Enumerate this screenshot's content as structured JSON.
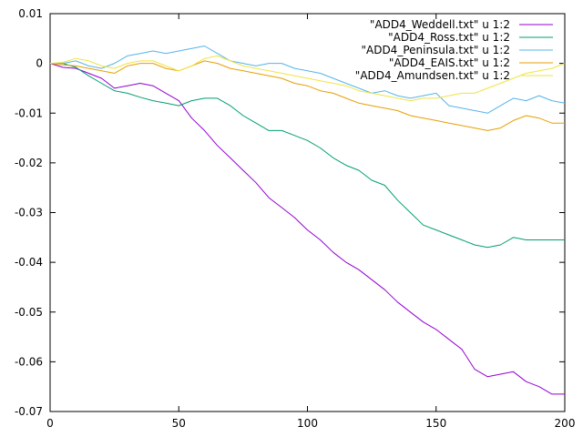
{
  "chart_data": {
    "type": "line",
    "title": "",
    "xlabel": "",
    "ylabel": "",
    "xlim": [
      0,
      200
    ],
    "ylim": [
      -0.07,
      0.01
    ],
    "xticks": [
      0,
      50,
      100,
      150,
      200
    ],
    "xtick_labels": [
      "0",
      "50",
      "100",
      "150",
      "200"
    ],
    "yticks": [
      0.01,
      0,
      -0.01,
      -0.02,
      -0.03,
      -0.04,
      -0.05,
      -0.06,
      -0.07
    ],
    "ytick_labels": [
      "0.01",
      "0",
      "-0.01",
      "-0.02",
      "-0.03",
      "-0.04",
      "-0.05",
      "-0.06",
      "-0.07"
    ],
    "grid": false,
    "legend_position": "top-right",
    "series": [
      {
        "name": "\"ADD4_Weddell.txt\" u 1:2",
        "color": "#9400d3",
        "x": [
          0,
          5,
          10,
          15,
          20,
          25,
          30,
          35,
          40,
          45,
          50,
          55,
          60,
          65,
          70,
          75,
          80,
          85,
          90,
          95,
          100,
          105,
          110,
          115,
          120,
          125,
          130,
          135,
          140,
          145,
          150,
          155,
          160,
          165,
          170,
          175,
          180,
          185,
          190,
          195,
          200
        ],
        "y": [
          0,
          -0.0008,
          -0.001,
          -0.002,
          -0.003,
          -0.005,
          -0.0045,
          -0.004,
          -0.0045,
          -0.006,
          -0.0075,
          -0.011,
          -0.0135,
          -0.0165,
          -0.019,
          -0.0215,
          -0.024,
          -0.027,
          -0.029,
          -0.031,
          -0.0335,
          -0.0355,
          -0.038,
          -0.04,
          -0.0415,
          -0.0435,
          -0.0455,
          -0.048,
          -0.05,
          -0.052,
          -0.0535,
          -0.0555,
          -0.0575,
          -0.0615,
          -0.063,
          -0.0625,
          -0.062,
          -0.064,
          -0.065,
          -0.0665,
          -0.0665
        ]
      },
      {
        "name": "\"ADD4_Ross.txt\" u 1:2",
        "color": "#009e73",
        "x": [
          0,
          5,
          10,
          15,
          20,
          25,
          30,
          35,
          40,
          45,
          50,
          55,
          60,
          65,
          70,
          75,
          80,
          85,
          90,
          95,
          100,
          105,
          110,
          115,
          120,
          125,
          130,
          135,
          140,
          145,
          150,
          155,
          160,
          165,
          170,
          175,
          180,
          185,
          190,
          195,
          200
        ],
        "y": [
          0,
          0,
          -0.0008,
          -0.0025,
          -0.004,
          -0.0055,
          -0.006,
          -0.0068,
          -0.0075,
          -0.008,
          -0.0085,
          -0.0075,
          -0.007,
          -0.007,
          -0.0085,
          -0.0105,
          -0.012,
          -0.0135,
          -0.0135,
          -0.0145,
          -0.0155,
          -0.017,
          -0.019,
          -0.0205,
          -0.0215,
          -0.0235,
          -0.0245,
          -0.0275,
          -0.03,
          -0.0325,
          -0.0335,
          -0.0345,
          -0.0355,
          -0.0365,
          -0.037,
          -0.0365,
          -0.035,
          -0.0355,
          -0.0355,
          -0.0355,
          -0.0355
        ]
      },
      {
        "name": "\"ADD4_Peninsula.txt\" u 1:2",
        "color": "#56b4e9",
        "x": [
          0,
          5,
          10,
          15,
          20,
          25,
          30,
          35,
          40,
          45,
          50,
          55,
          60,
          65,
          70,
          75,
          80,
          85,
          90,
          95,
          100,
          105,
          110,
          115,
          120,
          125,
          130,
          135,
          140,
          145,
          150,
          155,
          160,
          165,
          170,
          175,
          180,
          185,
          190,
          195,
          200
        ],
        "y": [
          0,
          0,
          0.0005,
          -0.0005,
          -0.001,
          0,
          0.0015,
          0.002,
          0.0025,
          0.002,
          0.0025,
          0.003,
          0.0035,
          0.002,
          0.0005,
          0,
          -0.0005,
          0,
          0,
          -0.001,
          -0.0015,
          -0.002,
          -0.003,
          -0.004,
          -0.005,
          -0.006,
          -0.0055,
          -0.0065,
          -0.007,
          -0.0065,
          -0.006,
          -0.0085,
          -0.009,
          -0.0095,
          -0.01,
          -0.0085,
          -0.007,
          -0.0075,
          -0.0065,
          -0.0075,
          -0.008
        ]
      },
      {
        "name": "\"ADD4_EAIS.txt\" u 1:2",
        "color": "#e69f00",
        "x": [
          0,
          5,
          10,
          15,
          20,
          25,
          30,
          35,
          40,
          45,
          50,
          55,
          60,
          65,
          70,
          75,
          80,
          85,
          90,
          95,
          100,
          105,
          110,
          115,
          120,
          125,
          130,
          135,
          140,
          145,
          150,
          155,
          160,
          165,
          170,
          175,
          180,
          185,
          190,
          195,
          200
        ],
        "y": [
          0,
          -0.0003,
          -0.0005,
          -0.001,
          -0.0015,
          -0.002,
          -0.0005,
          0,
          0,
          -0.001,
          -0.0015,
          -0.0005,
          0.0005,
          0,
          -0.001,
          -0.0015,
          -0.002,
          -0.0025,
          -0.003,
          -0.004,
          -0.0045,
          -0.0055,
          -0.006,
          -0.007,
          -0.008,
          -0.0085,
          -0.009,
          -0.0095,
          -0.0105,
          -0.011,
          -0.0115,
          -0.012,
          -0.0125,
          -0.013,
          -0.0135,
          -0.013,
          -0.0115,
          -0.0105,
          -0.011,
          -0.012,
          -0.012
        ]
      },
      {
        "name": "\"ADD4_Amundsen.txt\" u 1:2",
        "color": "#f0e442",
        "x": [
          0,
          5,
          10,
          15,
          20,
          25,
          30,
          35,
          40,
          45,
          50,
          55,
          60,
          65,
          70,
          75,
          80,
          85,
          90,
          95,
          100,
          105,
          110,
          115,
          120,
          125,
          130,
          135,
          140,
          145,
          150,
          155,
          160,
          165,
          170,
          175,
          180,
          185,
          190,
          195,
          200
        ],
        "y": [
          0,
          0.0002,
          0.001,
          0.0005,
          -0.0005,
          -0.001,
          0,
          0.0005,
          0.0005,
          -0.0005,
          -0.0015,
          -0.0005,
          0.001,
          0.0015,
          0.0005,
          -0.0005,
          -0.001,
          -0.0015,
          -0.002,
          -0.0025,
          -0.003,
          -0.0035,
          -0.004,
          -0.0045,
          -0.0055,
          -0.006,
          -0.0065,
          -0.007,
          -0.0075,
          -0.007,
          -0.007,
          -0.0065,
          -0.006,
          -0.006,
          -0.005,
          -0.004,
          -0.003,
          -0.002,
          -0.0015,
          -0.001,
          0
        ]
      }
    ]
  }
}
